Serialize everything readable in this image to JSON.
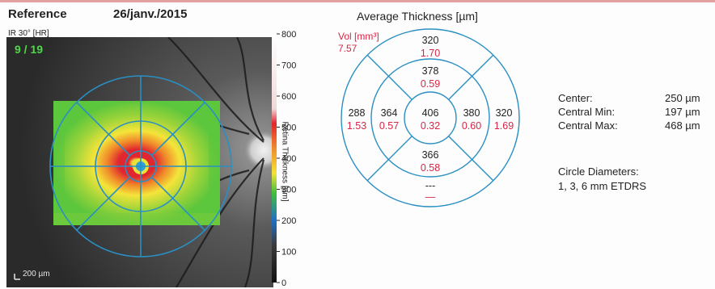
{
  "header": {
    "left_title": "Reference",
    "date": "26/janv./2015"
  },
  "image_panel": {
    "modality": "IR 30° [HR]",
    "frame_counter": "9 / 19",
    "scale_bar_label": "200 µm"
  },
  "colorbar": {
    "label": "Retina Thickness [µm]",
    "ticks": [
      "800",
      "700",
      "600",
      "500",
      "400",
      "300",
      "200",
      "100",
      "0"
    ],
    "colors": {
      "top": "#ffffff",
      "red": "#e0262f",
      "yellow": "#f4e43a",
      "green": "#3fbf3a",
      "blue": "#1f6fc8",
      "black": "#111111"
    }
  },
  "etdrs": {
    "title": "Average Thickness [µm]",
    "volume_unit": "Vol [mm³]",
    "total_volume": "7.57",
    "colors": {
      "circle": "#2a8fc2",
      "thickness": "#222222",
      "volume": "#d82646"
    },
    "sectors": {
      "center": {
        "thickness": "406",
        "volume": "0.32"
      },
      "inner_superior": {
        "thickness": "378",
        "volume": "0.59"
      },
      "inner_nasal": {
        "thickness": "380",
        "volume": "0.60"
      },
      "inner_inferior": {
        "thickness": "366",
        "volume": "0.58"
      },
      "inner_temporal": {
        "thickness": "364",
        "volume": "0.57"
      },
      "outer_superior": {
        "thickness": "320",
        "volume": "1.70"
      },
      "outer_nasal": {
        "thickness": "320",
        "volume": "1.69"
      },
      "outer_inferior": {
        "thickness": "---",
        "volume": "—"
      },
      "outer_temporal": {
        "thickness": "288",
        "volume": "1.53"
      }
    }
  },
  "stats": [
    {
      "label": "Center:",
      "value": "250 µm"
    },
    {
      "label": "Central Min:",
      "value": "197 µm"
    },
    {
      "label": "Central Max:",
      "value": "468 µm"
    }
  ],
  "circle_diameters": {
    "title": "Circle Diameters:",
    "value": "1, 3, 6 mm ETDRS"
  }
}
